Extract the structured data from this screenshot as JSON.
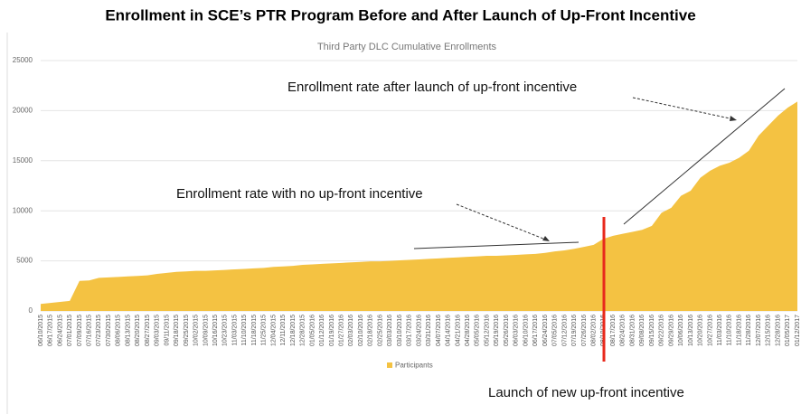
{
  "chart_data": {
    "type": "area",
    "title": "Enrollment in SCE’s PTR Program Before and After Launch of Up-Front Incentive",
    "subtitle": "Third Party DLC Cumulative Enrollments",
    "annotations": [
      "Enrollment rate after launch of  up-front incentive",
      "Enrollment rate with no up-front incentive",
      "Launch of new up-front incentive"
    ],
    "categories": [
      "06/10/2015",
      "06/17/2015",
      "06/24/2015",
      "07/01/2015",
      "07/09/2015",
      "07/16/2015",
      "07/23/2015",
      "07/30/2015",
      "08/06/2015",
      "08/13/2015",
      "08/20/2015",
      "08/27/2015",
      "09/03/2015",
      "09/11/2015",
      "09/18/2015",
      "09/25/2015",
      "10/02/2015",
      "10/09/2015",
      "10/16/2015",
      "10/23/2015",
      "11/03/2015",
      "11/10/2015",
      "11/18/2015",
      "11/25/2015",
      "12/04/2015",
      "12/11/2015",
      "12/18/2015",
      "12/28/2015",
      "01/05/2016",
      "01/12/2016",
      "01/19/2016",
      "01/27/2016",
      "02/03/2016",
      "02/10/2016",
      "02/18/2016",
      "02/25/2016",
      "03/03/2016",
      "03/10/2016",
      "03/17/2016",
      "03/24/2016",
      "03/31/2016",
      "04/07/2016",
      "04/14/2016",
      "04/21/2016",
      "04/28/2016",
      "05/05/2016",
      "05/12/2016",
      "05/19/2016",
      "05/26/2016",
      "06/03/2016",
      "06/10/2016",
      "06/17/2016",
      "06/24/2016",
      "07/05/2016",
      "07/12/2016",
      "07/19/2016",
      "07/26/2016",
      "08/02/2016",
      "08/10/2016",
      "08/17/2016",
      "08/24/2016",
      "08/31/2016",
      "09/08/2016",
      "09/15/2016",
      "09/22/2016",
      "09/29/2016",
      "10/06/2016",
      "10/13/2016",
      "10/20/2016",
      "10/27/2016",
      "11/03/2016",
      "11/10/2016",
      "11/18/2016",
      "11/28/2016",
      "12/07/2016",
      "12/15/2016",
      "12/28/2016",
      "01/05/2017",
      "01/12/2017"
    ],
    "series": [
      {
        "name": "Participants",
        "color": "#f4c242",
        "values": [
          700,
          800,
          900,
          1000,
          3000,
          3050,
          3300,
          3350,
          3400,
          3450,
          3500,
          3550,
          3700,
          3800,
          3900,
          3950,
          4000,
          4000,
          4050,
          4100,
          4150,
          4200,
          4250,
          4300,
          4400,
          4450,
          4500,
          4600,
          4650,
          4700,
          4750,
          4800,
          4850,
          4900,
          4950,
          4950,
          5000,
          5050,
          5100,
          5150,
          5200,
          5250,
          5300,
          5350,
          5400,
          5450,
          5500,
          5500,
          5550,
          5600,
          5650,
          5700,
          5800,
          5950,
          6050,
          6200,
          6400,
          6600,
          7200,
          7500,
          7700,
          7900,
          8100,
          8500,
          9800,
          10300,
          11500,
          12000,
          13300,
          14000,
          14500,
          14800,
          15300,
          16000,
          17500,
          18500,
          19500,
          20300,
          20900
        ]
      }
    ],
    "ylim": [
      0,
      25000
    ],
    "yticks": [
      0,
      5000,
      10000,
      15000,
      20000,
      25000
    ],
    "grid": true
  }
}
